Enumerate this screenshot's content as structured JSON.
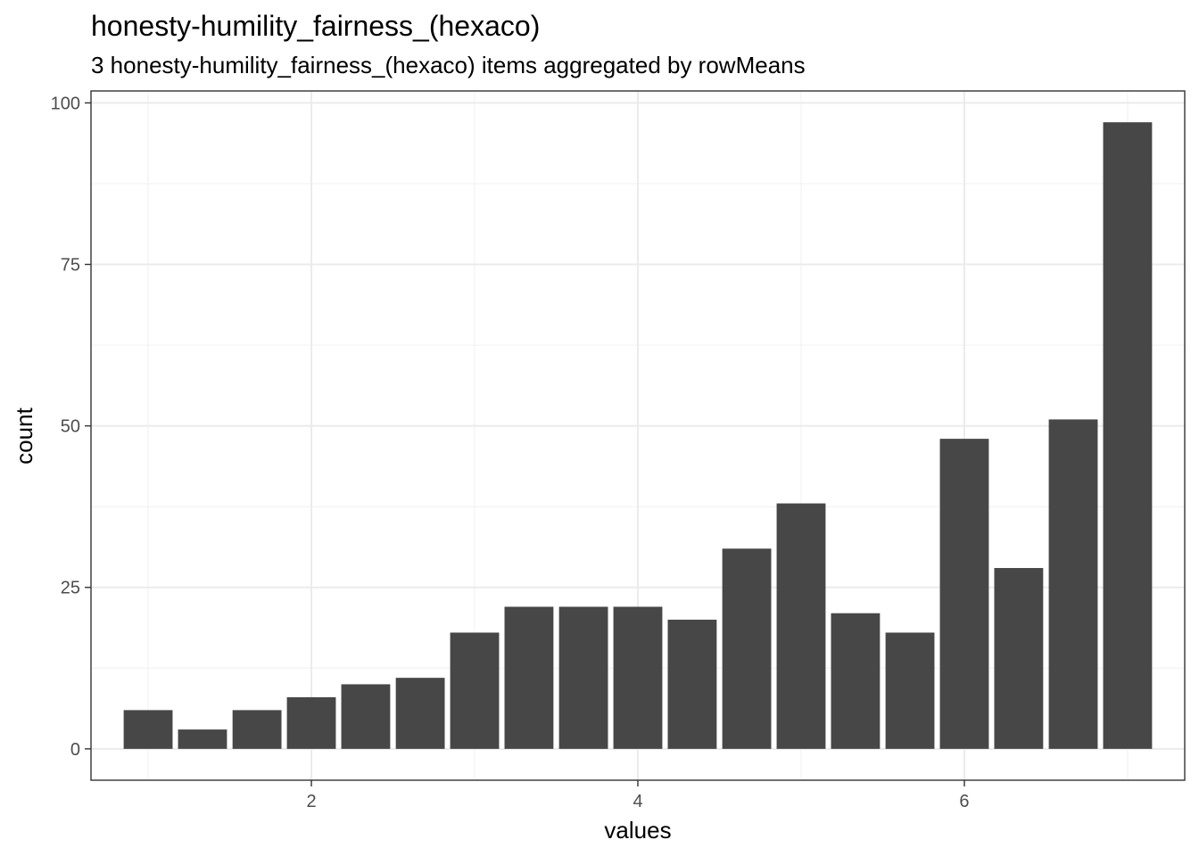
{
  "chart_data": {
    "type": "bar",
    "title": "honesty-humility_fairness_(hexaco)",
    "subtitle": "3 honesty-humility_fairness_(hexaco) items aggregated by rowMeans",
    "xlabel": "values",
    "ylabel": "count",
    "x": [
      1.0,
      1.333,
      1.667,
      2.0,
      2.333,
      2.667,
      3.0,
      3.333,
      3.667,
      4.0,
      4.333,
      4.667,
      5.0,
      5.333,
      5.667,
      6.0,
      6.333,
      6.667,
      7.0
    ],
    "values": [
      6,
      3,
      6,
      8,
      10,
      11,
      18,
      22,
      22,
      22,
      20,
      31,
      38,
      21,
      18,
      48,
      28,
      51,
      97
    ],
    "xlim": [
      0.65,
      7.35
    ],
    "ylim": [
      -4.85,
      101.85
    ],
    "x_ticks": [
      2,
      4,
      6
    ],
    "y_ticks": [
      0,
      25,
      50,
      75,
      100
    ],
    "grid": true,
    "bar_color": "#474747"
  }
}
